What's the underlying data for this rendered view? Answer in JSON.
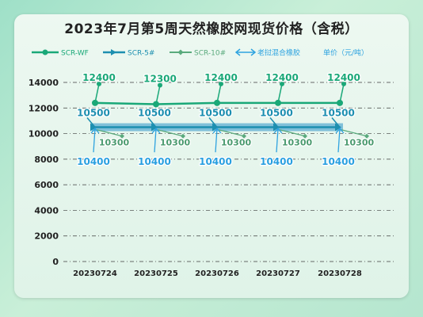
{
  "title": "2023年7月第5周天然橡胶网现货价格（含税）",
  "chart_data": {
    "type": "line",
    "categories": [
      "20230724",
      "20230725",
      "20230726",
      "20230727",
      "20230728"
    ],
    "ylim": [
      0,
      14000
    ],
    "yticks": [
      "0",
      "2000",
      "4000",
      "6000",
      "8000",
      "10000",
      "12000",
      "14000"
    ],
    "series": [
      {
        "name": "SCR-WF",
        "values": [
          12400,
          12300,
          12400,
          12400,
          12400
        ],
        "color": "#1aa878"
      },
      {
        "name": "SCR-5#",
        "values": [
          10500,
          10500,
          10500,
          10500,
          10500
        ],
        "color": "#1d8fb0"
      },
      {
        "name": "SCR-10#",
        "values": [
          10300,
          10300,
          10300,
          10300,
          10300
        ],
        "color": "#5aaa7d"
      },
      {
        "name": "老挝混合橡胶",
        "values": [
          10400,
          10400,
          10400,
          10400,
          10400
        ],
        "color": "#2ea3e0"
      }
    ],
    "legend_unit": "单价（元/吨）",
    "grid": true
  }
}
